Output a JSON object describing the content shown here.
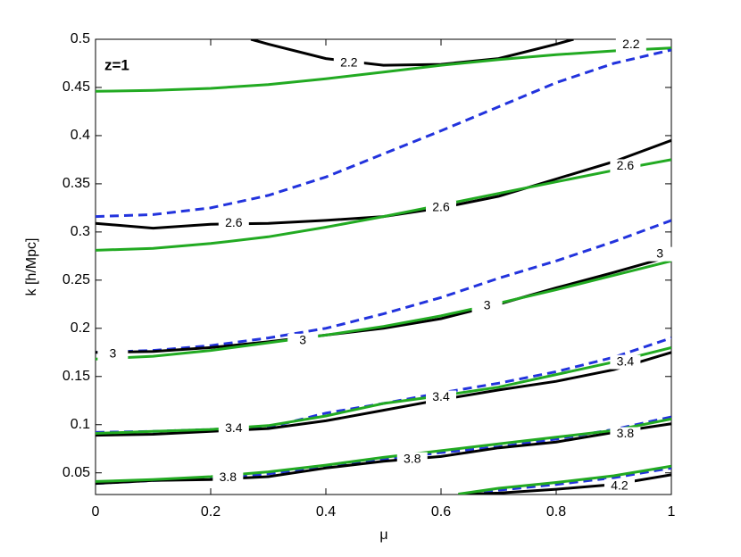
{
  "chart_data": {
    "type": "line",
    "annotation": "z=1",
    "x_label": "μ",
    "y_label": "k [h/Mpc]",
    "xlim": [
      0,
      1
    ],
    "xticks": [
      0,
      0.2,
      0.4,
      0.6,
      0.8,
      1
    ],
    "ylim": [
      0.0275,
      0.5
    ],
    "yticks": [
      0.05,
      0.1,
      0.15,
      0.2,
      0.25,
      0.3,
      0.35,
      0.4,
      0.45,
      0.5
    ],
    "series": [
      {
        "color": "#000000",
        "dashed": false,
        "level": 2.2,
        "labels": [
          [
            0.44,
            0.475
          ],
          [
            0.93,
            0.494
          ]
        ],
        "x": [
          0.27,
          0.3,
          0.4,
          0.5,
          0.6,
          0.7,
          0.8,
          0.83
        ],
        "values": [
          0.5,
          0.495,
          0.48,
          0.473,
          0.474,
          0.48,
          0.495,
          0.5
        ]
      },
      {
        "color": "#22aa22",
        "dashed": false,
        "x": [
          0,
          0.1,
          0.2,
          0.3,
          0.4,
          0.5,
          0.6,
          0.7,
          0.8,
          0.9,
          1
        ],
        "values": [
          0.446,
          0.447,
          0.449,
          0.453,
          0.459,
          0.466,
          0.473,
          0.479,
          0.484,
          0.488,
          0.491
        ]
      },
      {
        "color": "#2233dd",
        "dashed": true,
        "x": [
          0,
          0.1,
          0.2,
          0.3,
          0.4,
          0.5,
          0.6,
          0.7,
          0.8,
          0.9,
          1
        ],
        "values": [
          0.316,
          0.318,
          0.325,
          0.338,
          0.357,
          0.381,
          0.405,
          0.43,
          0.455,
          0.475,
          0.489
        ]
      },
      {
        "color": "#000000",
        "dashed": false,
        "level": 2.6,
        "labels": [
          [
            0.24,
            0.309
          ],
          [
            0.6,
            0.325
          ],
          [
            0.92,
            0.368
          ]
        ],
        "x": [
          0,
          0.1,
          0.2,
          0.3,
          0.4,
          0.5,
          0.6,
          0.7,
          0.8,
          0.9,
          1
        ],
        "values": [
          0.309,
          0.304,
          0.308,
          0.309,
          0.312,
          0.316,
          0.325,
          0.337,
          0.355,
          0.373,
          0.395
        ]
      },
      {
        "color": "#22aa22",
        "dashed": false,
        "x": [
          0,
          0.1,
          0.2,
          0.3,
          0.4,
          0.5,
          0.6,
          0.7,
          0.8,
          0.9,
          1
        ],
        "values": [
          0.281,
          0.283,
          0.288,
          0.295,
          0.305,
          0.316,
          0.328,
          0.34,
          0.352,
          0.364,
          0.375
        ]
      },
      {
        "color": "#2233dd",
        "dashed": true,
        "x": [
          0,
          0.1,
          0.2,
          0.3,
          0.4,
          0.5,
          0.6,
          0.7,
          0.8,
          0.9,
          1
        ],
        "values": [
          0.175,
          0.177,
          0.182,
          0.19,
          0.2,
          0.215,
          0.232,
          0.252,
          0.27,
          0.29,
          0.312
        ]
      },
      {
        "color": "#000000",
        "dashed": false,
        "level": 3,
        "labels": [
          [
            0.03,
            0.173
          ],
          [
            0.36,
            0.187
          ],
          [
            0.68,
            0.223
          ],
          [
            0.98,
            0.277
          ]
        ],
        "x": [
          0,
          0.1,
          0.2,
          0.3,
          0.4,
          0.5,
          0.6,
          0.7,
          0.8,
          0.9,
          1
        ],
        "values": [
          0.175,
          0.176,
          0.18,
          0.186,
          0.193,
          0.2,
          0.21,
          0.225,
          0.242,
          0.258,
          0.275
        ]
      },
      {
        "color": "#22aa22",
        "dashed": false,
        "x": [
          0,
          0.1,
          0.2,
          0.3,
          0.4,
          0.5,
          0.6,
          0.7,
          0.8,
          0.9,
          1
        ],
        "values": [
          0.168,
          0.171,
          0.177,
          0.185,
          0.193,
          0.202,
          0.213,
          0.226,
          0.24,
          0.255,
          0.27
        ]
      },
      {
        "color": "#2233dd",
        "dashed": true,
        "x": [
          0,
          0.1,
          0.2,
          0.3,
          0.4,
          0.5,
          0.6,
          0.7,
          0.8,
          0.9,
          1
        ],
        "values": [
          0.092,
          0.093,
          0.095,
          0.097,
          0.112,
          0.122,
          0.133,
          0.143,
          0.155,
          0.17,
          0.19
        ]
      },
      {
        "color": "#000000",
        "dashed": false,
        "level": 3.4,
        "labels": [
          [
            0.24,
            0.096
          ],
          [
            0.6,
            0.128
          ],
          [
            0.92,
            0.165
          ]
        ],
        "x": [
          0,
          0.1,
          0.2,
          0.3,
          0.4,
          0.5,
          0.6,
          0.7,
          0.8,
          0.9,
          1
        ],
        "values": [
          0.089,
          0.09,
          0.093,
          0.096,
          0.104,
          0.115,
          0.126,
          0.136,
          0.145,
          0.157,
          0.175
        ]
      },
      {
        "color": "#22aa22",
        "dashed": false,
        "x": [
          0,
          0.1,
          0.2,
          0.3,
          0.4,
          0.5,
          0.6,
          0.7,
          0.8,
          0.9,
          1
        ],
        "values": [
          0.091,
          0.093,
          0.095,
          0.099,
          0.109,
          0.122,
          0.13,
          0.139,
          0.152,
          0.165,
          0.18
        ]
      },
      {
        "color": "#2233dd",
        "dashed": true,
        "x": [
          0,
          0.1,
          0.2,
          0.3,
          0.4,
          0.5,
          0.6,
          0.7,
          0.8,
          0.9,
          1
        ],
        "values": [
          0.039,
          0.042,
          0.044,
          0.049,
          0.057,
          0.064,
          0.071,
          0.077,
          0.085,
          0.095,
          0.108
        ]
      },
      {
        "color": "#000000",
        "dashed": false,
        "level": 3.8,
        "labels": [
          [
            0.23,
            0.045
          ],
          [
            0.55,
            0.064
          ],
          [
            0.92,
            0.09
          ]
        ],
        "x": [
          0,
          0.1,
          0.2,
          0.3,
          0.4,
          0.5,
          0.6,
          0.7,
          0.8,
          0.9,
          1
        ],
        "values": [
          0.039,
          0.042,
          0.043,
          0.046,
          0.055,
          0.062,
          0.067,
          0.076,
          0.082,
          0.092,
          0.101
        ]
      },
      {
        "color": "#22aa22",
        "dashed": false,
        "x": [
          0,
          0.1,
          0.2,
          0.3,
          0.4,
          0.5,
          0.6,
          0.7,
          0.8,
          0.9,
          1
        ],
        "values": [
          0.041,
          0.043,
          0.046,
          0.051,
          0.058,
          0.066,
          0.073,
          0.08,
          0.087,
          0.094,
          0.106
        ]
      },
      {
        "color": "#2233dd",
        "dashed": true,
        "x": [
          0.65,
          0.7,
          0.8,
          0.9,
          1
        ],
        "values": [
          0.0275,
          0.032,
          0.038,
          0.045,
          0.055
        ]
      },
      {
        "color": "#000000",
        "dashed": false,
        "level": 4.2,
        "labels": [
          [
            0.91,
            0.036
          ]
        ],
        "x": [
          0.63,
          0.7,
          0.8,
          0.9,
          1
        ],
        "values": [
          0.0275,
          0.029,
          0.033,
          0.038,
          0.048
        ]
      },
      {
        "color": "#22aa22",
        "dashed": false,
        "x": [
          0.63,
          0.7,
          0.8,
          0.9,
          1
        ],
        "values": [
          0.028,
          0.034,
          0.04,
          0.047,
          0.057
        ]
      }
    ]
  }
}
